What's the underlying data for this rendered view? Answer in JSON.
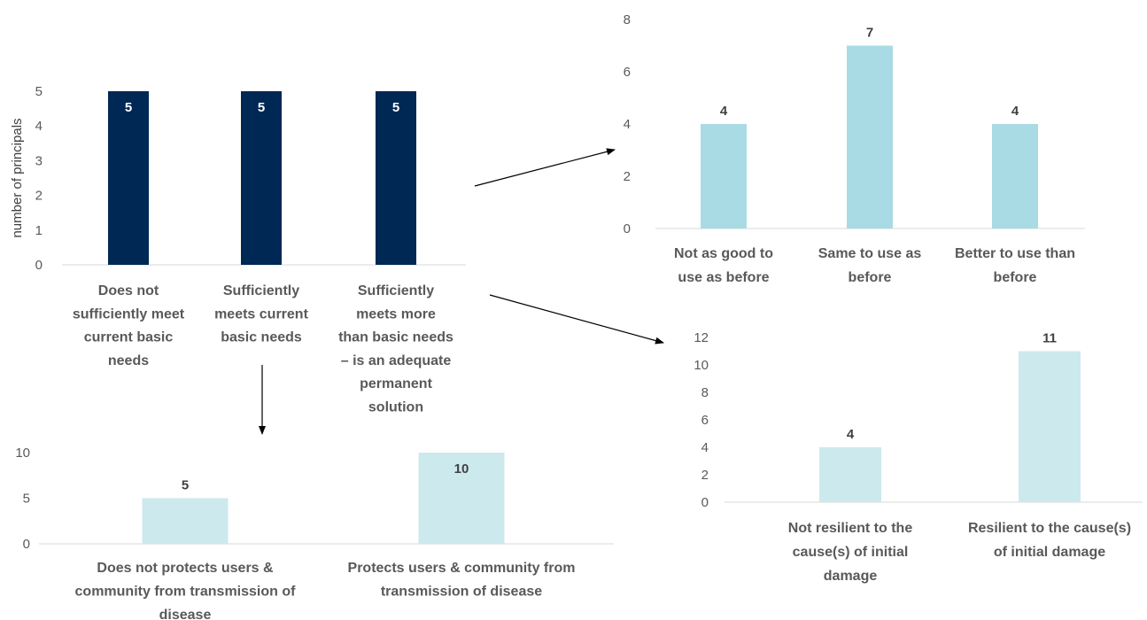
{
  "chart_data": [
    {
      "id": "main",
      "type": "bar",
      "categories": [
        "Does not\nsufficiently meet\ncurrent basic\nneeds",
        "Sufficiently\nmeets current\nbasic needs",
        "Sufficiently\nmeets more\nthan basic needs\n– is an adequate\npermanent\nsolution"
      ],
      "values": [
        5,
        5,
        5
      ],
      "ylabel": "number of principals",
      "ylim": [
        0,
        5
      ],
      "yticks": [
        "0",
        "1",
        "2",
        "3",
        "4",
        "5"
      ],
      "color": "#002855",
      "label_position": "inside-top",
      "grid": false
    },
    {
      "id": "top-right",
      "type": "bar",
      "categories": [
        "Not as good to\nuse as before",
        "Same to use as\nbefore",
        "Better to use than\nbefore"
      ],
      "values": [
        4,
        7,
        4
      ],
      "ylim": [
        0,
        8
      ],
      "yticks": [
        "0",
        "2",
        "4",
        "6",
        "8"
      ],
      "color": "#a8dbe3",
      "label_position": "above",
      "grid": false
    },
    {
      "id": "bottom-right",
      "type": "bar",
      "categories": [
        "Not resilient to the\ncause(s) of initial\ndamage",
        "Resilient to the cause(s)\nof initial damage"
      ],
      "values": [
        4,
        11
      ],
      "ylim": [
        0,
        12
      ],
      "yticks": [
        "0",
        "2",
        "4",
        "6",
        "8",
        "10",
        "12"
      ],
      "color": "#cce9ee",
      "label_position": "above",
      "grid": false
    },
    {
      "id": "bottom-left",
      "type": "bar",
      "categories": [
        "Does not protects users &\ncommunity from transmission of\ndisease",
        "Protects users & community from\ntransmission of disease"
      ],
      "values": [
        5,
        10
      ],
      "ylim": [
        0,
        10
      ],
      "yticks": [
        "0",
        "5",
        "10"
      ],
      "color": "#cce9ee",
      "label_position": "above",
      "grid": false
    }
  ]
}
